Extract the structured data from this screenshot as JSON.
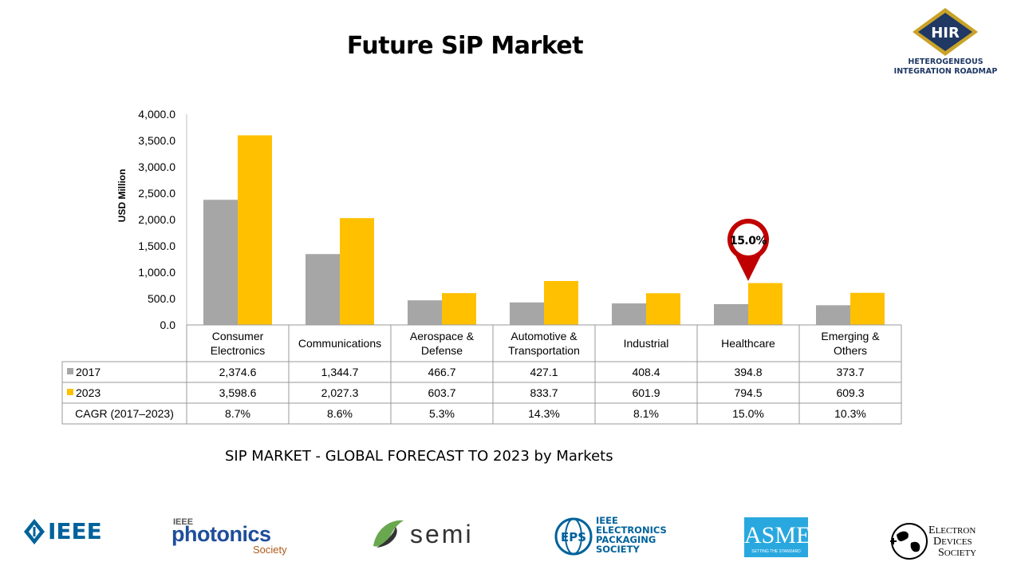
{
  "slide": {
    "title": "Future SiP Market",
    "caption": "SIP MARKET - GLOBAL FORECAST TO 2023 by Markets"
  },
  "hir_logo": {
    "abbr": "HIR",
    "line1": "HETEROGENEOUS",
    "line2": "INTEGRATION ROADMAP"
  },
  "chart_data": {
    "type": "bar",
    "ylabel": "USD Million",
    "ylim": [
      0,
      4000
    ],
    "yticks": [
      "0.0",
      "500.0",
      "1,000.0",
      "1,500.0",
      "2,000.0",
      "2,500.0",
      "3,000.0",
      "3,500.0",
      "4,000.0"
    ],
    "categories": [
      [
        "Consumer",
        "Electronics"
      ],
      [
        "Communications"
      ],
      [
        "Aerospace &",
        "Defense"
      ],
      [
        "Automotive &",
        "Transportation"
      ],
      [
        "Industrial"
      ],
      [
        "Healthcare"
      ],
      [
        "Emerging &",
        "Others"
      ]
    ],
    "series": [
      {
        "name": "2017",
        "color": "#a6a6a6",
        "values": [
          2374.6,
          1344.7,
          466.7,
          427.1,
          408.4,
          394.8,
          373.7
        ],
        "labels": [
          "2,374.6",
          "1,344.7",
          "466.7",
          "427.1",
          "408.4",
          "394.8",
          "373.7"
        ]
      },
      {
        "name": "2023",
        "color": "#ffc000",
        "values": [
          3598.6,
          2027.3,
          603.7,
          833.7,
          601.9,
          794.5,
          609.3
        ],
        "labels": [
          "3,598.6",
          "2,027.3",
          "603.7",
          "833.7",
          "601.9",
          "794.5",
          "609.3"
        ]
      }
    ],
    "cagr_row_label": "CAGR (2017–2023)",
    "cagr": [
      "8.7%",
      "8.6%",
      "5.3%",
      "14.3%",
      "8.1%",
      "15.0%",
      "10.3%"
    ],
    "callout": {
      "category_index": 5,
      "text": "15.0%",
      "color": "#c00000"
    }
  },
  "logos": {
    "ieee": "IEEE",
    "photonics": {
      "top": "IEEE",
      "main": "photonics",
      "sub": "Society"
    },
    "semi": "semi",
    "eps": {
      "abbr": "EPS",
      "lines": [
        "IEEE",
        "ELECTRONICS",
        "PACKAGING",
        "SOCIETY"
      ]
    },
    "asme": {
      "abbr": "ASME",
      "tag": "SETTING THE STANDARD"
    },
    "eds": {
      "lines": [
        "LECTRON",
        "EVICES",
        "OCIETY"
      ],
      "initials": [
        "E",
        "D",
        "S"
      ]
    }
  }
}
